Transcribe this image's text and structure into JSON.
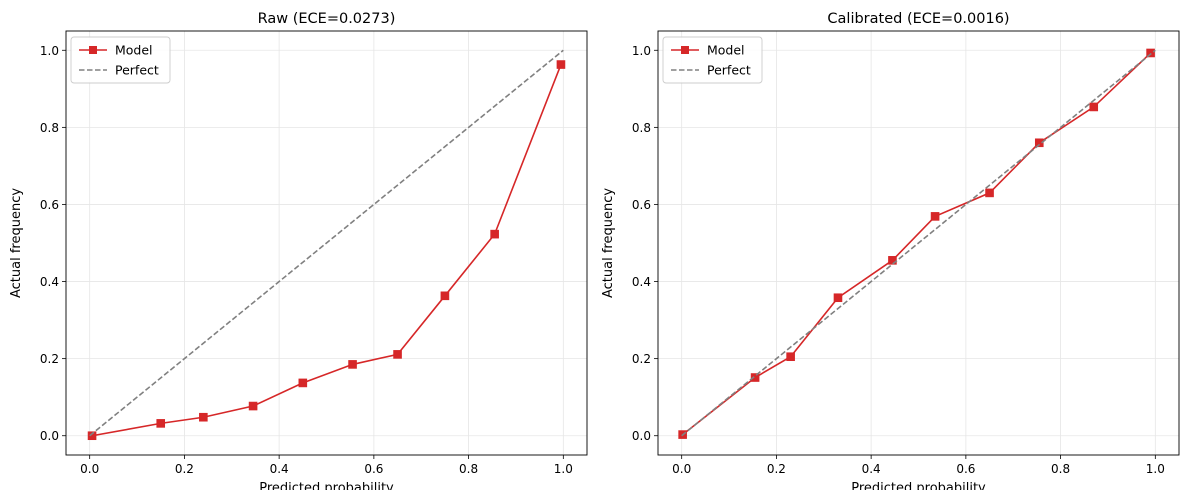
{
  "chart_data": [
    {
      "type": "line",
      "title": "Raw (ECE=0.0273)",
      "xlabel": "Predicted probability",
      "ylabel": "Actual frequency",
      "xlim": [
        -0.05,
        1.05
      ],
      "ylim": [
        -0.05,
        1.05
      ],
      "xticks": [
        "0.0",
        "0.2",
        "0.4",
        "0.6",
        "0.8",
        "1.0"
      ],
      "yticks": [
        "0.0",
        "0.2",
        "0.4",
        "0.6",
        "0.8",
        "1.0"
      ],
      "grid": true,
      "legend_position": "top-left",
      "series": [
        {
          "name": "Model",
          "color": "#d62728",
          "marker": "square",
          "x": [
            0.005,
            0.15,
            0.24,
            0.345,
            0.45,
            0.555,
            0.65,
            0.75,
            0.855,
            0.995
          ],
          "y": [
            0.0,
            0.032,
            0.048,
            0.077,
            0.137,
            0.185,
            0.211,
            0.363,
            0.523,
            0.963
          ]
        },
        {
          "name": "Perfect",
          "color": "#808080",
          "style": "dashed",
          "x": [
            0.0,
            1.0
          ],
          "y": [
            0.0,
            1.0
          ]
        }
      ]
    },
    {
      "type": "line",
      "title": "Calibrated (ECE=0.0016)",
      "xlabel": "Predicted probability",
      "ylabel": "Actual frequency",
      "xlim": [
        -0.05,
        1.05
      ],
      "ylim": [
        -0.05,
        1.05
      ],
      "xticks": [
        "0.0",
        "0.2",
        "0.4",
        "0.6",
        "0.8",
        "1.0"
      ],
      "yticks": [
        "0.0",
        "0.2",
        "0.4",
        "0.6",
        "0.8",
        "1.0"
      ],
      "grid": true,
      "legend_position": "top-left",
      "series": [
        {
          "name": "Model",
          "color": "#d62728",
          "marker": "square",
          "x": [
            0.002,
            0.155,
            0.23,
            0.33,
            0.445,
            0.535,
            0.65,
            0.755,
            0.87,
            0.99
          ],
          "y": [
            0.003,
            0.151,
            0.205,
            0.358,
            0.455,
            0.569,
            0.63,
            0.76,
            0.853,
            0.993
          ]
        },
        {
          "name": "Perfect",
          "color": "#808080",
          "style": "dashed",
          "x": [
            0.0,
            1.0
          ],
          "y": [
            0.0,
            1.0
          ]
        }
      ]
    }
  ]
}
